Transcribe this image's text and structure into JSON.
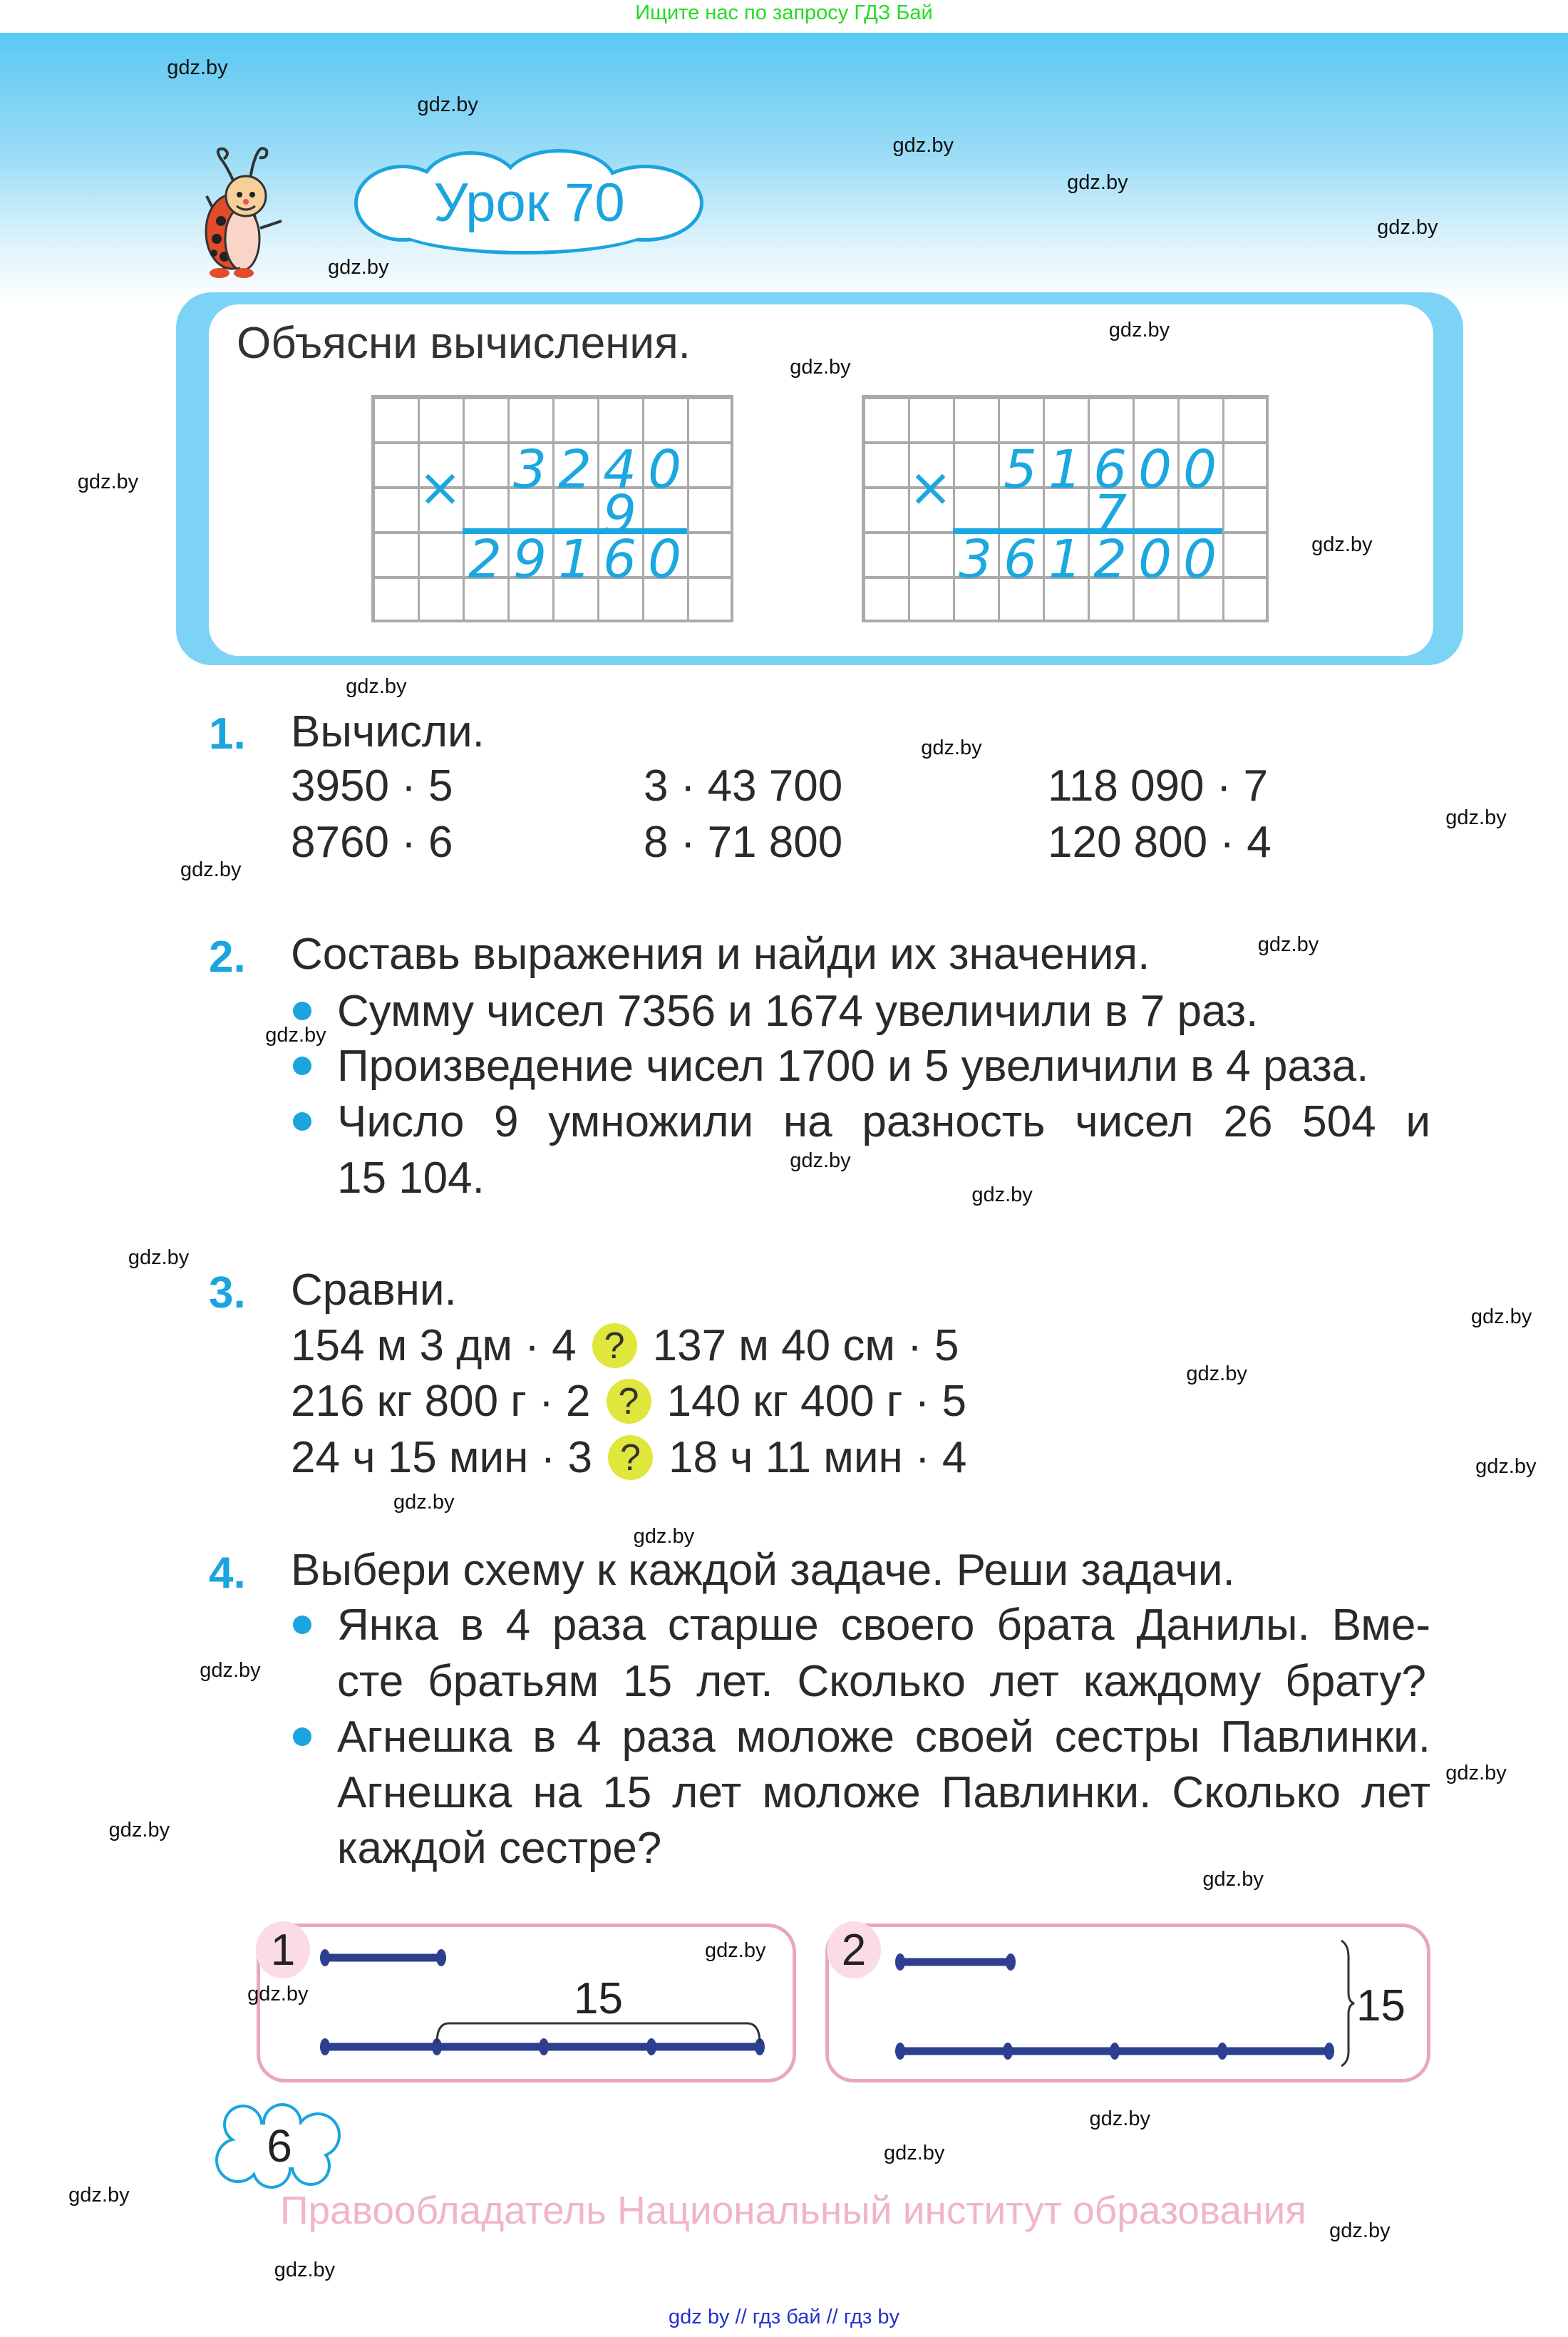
{
  "top_banner": "Ищите нас по запросу ГДЗ Бай",
  "watermark": "gdz.by",
  "lesson_title": "Урок 70",
  "explain": {
    "title": "Объясни вычисления.",
    "calc1": {
      "sign": "×",
      "top": [
        "3",
        "2",
        "4",
        "0"
      ],
      "multiplier": "9",
      "result": [
        "2",
        "9",
        "1",
        "6",
        "0"
      ]
    },
    "calc2": {
      "sign": "×",
      "top": [
        "5",
        "1",
        "6",
        "0",
        "0"
      ],
      "multiplier": "7",
      "result": [
        "3",
        "6",
        "1",
        "2",
        "0",
        "0"
      ]
    }
  },
  "task1": {
    "number": "1.",
    "title": "Вычисли.",
    "rows": [
      [
        "3950 · 5",
        "3 · 43 700",
        "118 090 · 7"
      ],
      [
        "8760 · 6",
        "8 · 71 800",
        "120 800 · 4"
      ]
    ]
  },
  "task2": {
    "number": "2.",
    "title": "Составь выражения и найди их значения.",
    "lines": [
      "Сумму чисел 7356 и 1674 увеличили в 7 раз.",
      "Произведение чисел 1700 и 5 увеличили в 4 раза.",
      "Число 9 умножили на разность чисел 26 504 и",
      "15 104."
    ]
  },
  "task3": {
    "number": "3.",
    "title": "Сравни.",
    "compare_mark": "?",
    "rows": [
      {
        "left": "154 м 3 дм · 4",
        "right": "137 м 40 см · 5"
      },
      {
        "left": "216 кг 800 г · 2",
        "right": "140 кг 400 г · 5"
      },
      {
        "left": "24 ч 15 мин · 3",
        "right": "18 ч 11 мин · 4"
      }
    ]
  },
  "task4": {
    "number": "4.",
    "title": "Выбери схему к каждой задаче. Реши задачи.",
    "lines": [
      "Янка в 4 раза старше своего брата Данилы. Вме-",
      "сте братьям 15 лет. Сколько лет каждому брату?",
      "Агнешка в 4 раза моложе своей сестры Павлинки.",
      "Агнешка на 15 лет моложе Павлинки. Сколько лет",
      "каждой сестре?"
    ],
    "schemes": [
      {
        "number": "1",
        "label": "15"
      },
      {
        "number": "2",
        "label": "15"
      }
    ]
  },
  "page_number": "6",
  "copyright": "Правообладатель Национальный институт образования",
  "bottom_links": "gdz by  //  гдз бай  //  гдз by",
  "colors": {
    "accent": "#1ba4de",
    "scheme_line": "#2d3f8f",
    "scheme_border": "#e9a5c5",
    "compare_circle": "#dfe63c",
    "banner_green": "#22dd22"
  }
}
